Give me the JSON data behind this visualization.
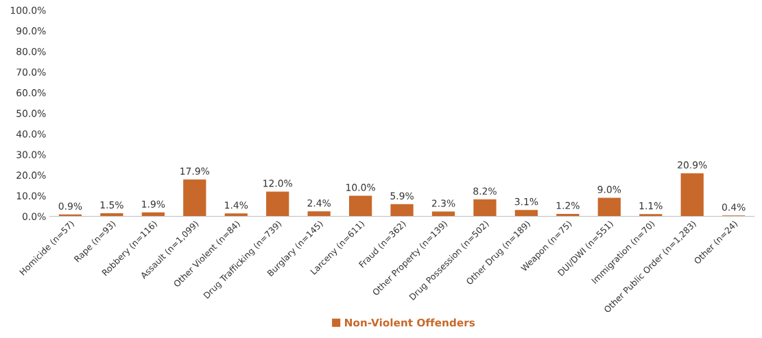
{
  "chart_data": {
    "type": "bar",
    "categories": [
      "Homicide (n=57)",
      "Rape (n=93)",
      "Robbery (n=116)",
      "Assault (n=1,099)",
      "Other Violent (n=84)",
      "Drug Trafficking (n=739)",
      "Burglary (n=145)",
      "Larceny (n=611)",
      "Fraud (n=362)",
      "Other Property (n=139)",
      "Drug Possession (n=502)",
      "Other Drug (n=189)",
      "Weapon (n=75)",
      "DUI/DWI (n=551)",
      "Immigration (n=70)",
      "Other Public Order (n=1,283)",
      "Other (n=24)"
    ],
    "series": [
      {
        "name": "Non-Violent Offenders",
        "color": "#c8682a",
        "values": [
          0.9,
          1.5,
          1.9,
          17.9,
          1.4,
          12.0,
          2.4,
          10.0,
          5.9,
          2.3,
          8.2,
          3.1,
          1.2,
          9.0,
          1.1,
          20.9,
          0.4
        ],
        "value_labels": [
          "0.9%",
          "1.5%",
          "1.9%",
          "17.9%",
          "1.4%",
          "12.0%",
          "2.4%",
          "10.0%",
          "5.9%",
          "2.3%",
          "8.2%",
          "3.1%",
          "1.2%",
          "9.0%",
          "1.1%",
          "20.9%",
          "0.4%"
        ]
      }
    ],
    "ylim": [
      0,
      100
    ],
    "yticks": [
      {
        "value": 0,
        "label": "0.0%"
      },
      {
        "value": 10,
        "label": "10.0%"
      },
      {
        "value": 20,
        "label": "20.0%"
      },
      {
        "value": 30,
        "label": "30.0%"
      },
      {
        "value": 40,
        "label": "40.0%"
      },
      {
        "value": 50,
        "label": "50.0%"
      },
      {
        "value": 60,
        "label": "60.0%"
      },
      {
        "value": 70,
        "label": "70.0%"
      },
      {
        "value": 80,
        "label": "80.0%"
      },
      {
        "value": 90,
        "label": "90.0%"
      },
      {
        "value": 100,
        "label": "100.0%"
      }
    ],
    "legend": "bottom"
  }
}
